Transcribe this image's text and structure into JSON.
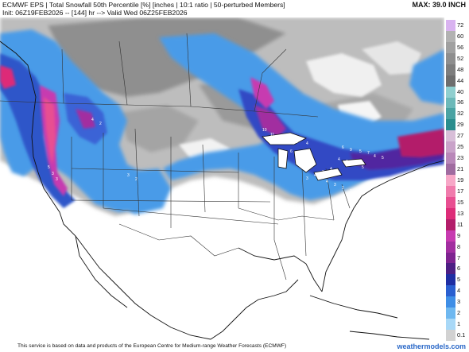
{
  "header": {
    "title": "ECMWF EPS | Total Snowfall 50th Percentile [%] [inches | 10:1 ratio | 50-perturbed Members]",
    "subtitle": "Init: 06Z19FEB2026 -- [144] hr --> Valid Wed 06Z25FEB2026",
    "max_label": "MAX: 39.0 INCH"
  },
  "legend": {
    "levels": [
      {
        "label": "72",
        "color": "#d9b3f0"
      },
      {
        "label": "60",
        "color": "#b2b2b2"
      },
      {
        "label": "56",
        "color": "#a0a0a0"
      },
      {
        "label": "52",
        "color": "#8e8e8e"
      },
      {
        "label": "48",
        "color": "#7d7d7d"
      },
      {
        "label": "44",
        "color": "#6d6d6d"
      },
      {
        "label": "40",
        "color": "#8fcfcf"
      },
      {
        "label": "36",
        "color": "#6cb9b9"
      },
      {
        "label": "32",
        "color": "#4aa3a3"
      },
      {
        "label": "29",
        "color": "#2a8d8d"
      },
      {
        "label": "27",
        "color": "#d8bed8"
      },
      {
        "label": "25",
        "color": "#c9a2c9"
      },
      {
        "label": "23",
        "color": "#b987b9"
      },
      {
        "label": "21",
        "color": "#a06ba0"
      },
      {
        "label": "19",
        "color": "#f7a7c7"
      },
      {
        "label": "17",
        "color": "#f07bac"
      },
      {
        "label": "15",
        "color": "#e84f91"
      },
      {
        "label": "13",
        "color": "#dd2c78"
      },
      {
        "label": "11",
        "color": "#b31d6a"
      },
      {
        "label": "9",
        "color": "#c73ab0"
      },
      {
        "label": "8",
        "color": "#a22ea0"
      },
      {
        "label": "7",
        "color": "#7e2390"
      },
      {
        "label": "6",
        "color": "#4d1f84"
      },
      {
        "label": "5",
        "color": "#1f2ea3"
      },
      {
        "label": "4",
        "color": "#2a5fd0"
      },
      {
        "label": "3",
        "color": "#3f8ee6"
      },
      {
        "label": "2",
        "color": "#6fb8f0"
      },
      {
        "label": "1",
        "color": "#a8d8f7"
      },
      {
        "label": "0.1",
        "color": "#d2d2d2"
      }
    ]
  },
  "map": {
    "labels": [
      "10",
      "11",
      "6",
      "8",
      "6",
      "4",
      "6",
      "9",
      "5",
      "7",
      "4",
      "5",
      "4",
      "6",
      "3",
      "5",
      "4",
      "3",
      "4",
      "3",
      "6",
      "4",
      "3",
      "5",
      "3",
      "3",
      "4",
      "2",
      "3",
      "2",
      "4",
      "3",
      "2",
      "1"
    ]
  },
  "footer": {
    "credit": "This service is based on data and products of the European Centre for Medium-range Weather Forecasts (ECMWF)",
    "brand": "weathermodels.com"
  }
}
